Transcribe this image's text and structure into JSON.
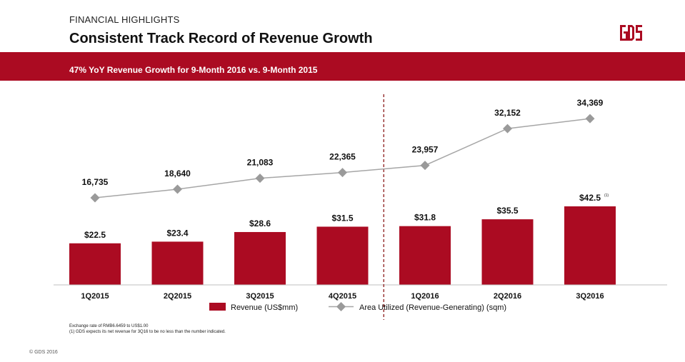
{
  "header": {
    "kicker": "FINANCIAL HIGHLIGHTS",
    "title": "Consistent Track Record of Revenue Growth",
    "logo_text": "GDS"
  },
  "banner": {
    "text": "47% YoY Revenue Growth for 9-Month 2016 vs. 9-Month 2015"
  },
  "colors": {
    "brand": "#AB0B22",
    "line": "#A6A6A6",
    "marker": "#9A9A9A"
  },
  "chart_data": {
    "type": "bar",
    "categories": [
      "1Q2015",
      "2Q2015",
      "3Q2015",
      "4Q2015",
      "1Q2016",
      "2Q2016",
      "3Q2016"
    ],
    "series": [
      {
        "name": "Revenue (US$mm)",
        "type": "bar",
        "values": [
          22.5,
          23.4,
          28.6,
          31.5,
          31.8,
          35.5,
          42.5
        ],
        "labels": [
          "$22.5",
          "$23.4",
          "$28.6",
          "$31.5",
          "$31.8",
          "$35.5",
          "$42.5"
        ]
      },
      {
        "name": "Area Utilized (Revenue-Generating) (sqm)",
        "type": "line",
        "values": [
          16735,
          18640,
          21083,
          22365,
          23957,
          32152,
          34369
        ],
        "labels": [
          "16,735",
          "18,640",
          "21,083",
          "22,365",
          "23,957",
          "32,152",
          "34,369"
        ]
      }
    ],
    "annotations": [
      {
        "category": "3Q2016",
        "series": "Revenue (US$mm)",
        "text": "(1)"
      }
    ],
    "divider_after_category": "4Q2015",
    "grid": false,
    "legend": "bottom-center"
  },
  "footnotes": [
    "Exchange rate of RMB6.6459 to US$1.00",
    "(1) GDS expects its net revenue for 3Q16 to be no less than the number indicated."
  ],
  "copyright": "© GDS 2016"
}
